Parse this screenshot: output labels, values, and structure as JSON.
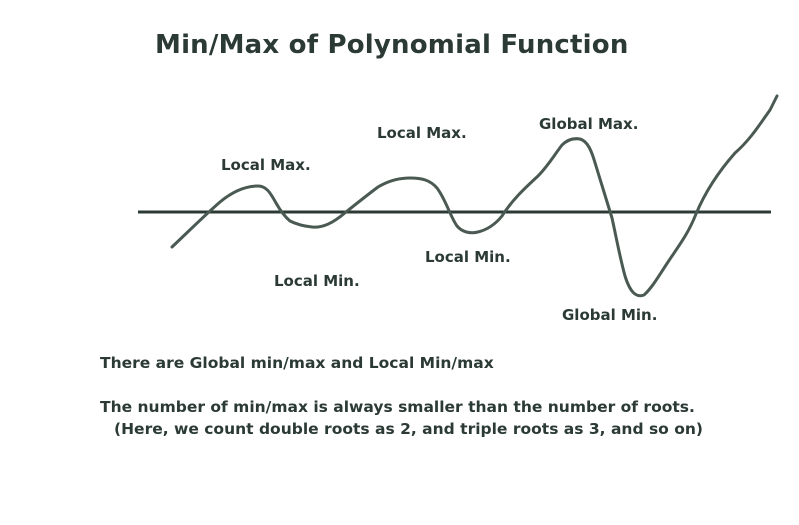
{
  "title": "Min/Max of Polynomial Function",
  "labels": {
    "local_max_1": "Local Max.",
    "local_max_2": "Local Max.",
    "global_max": "Global Max.",
    "local_min_1": "Local Min.",
    "local_min_2": "Local Min.",
    "global_min": "Global Min."
  },
  "notes": {
    "line1": "There are Global min/max and Local Min/max",
    "line2": "The number of min/max is always smaller than the number of roots.",
    "line3": "(Here, we count double roots as 2, and triple roots as 3, and so on)"
  },
  "colors": {
    "curve": "#4a5a52",
    "axis": "#2b3a34",
    "text": "#2b3a34"
  }
}
